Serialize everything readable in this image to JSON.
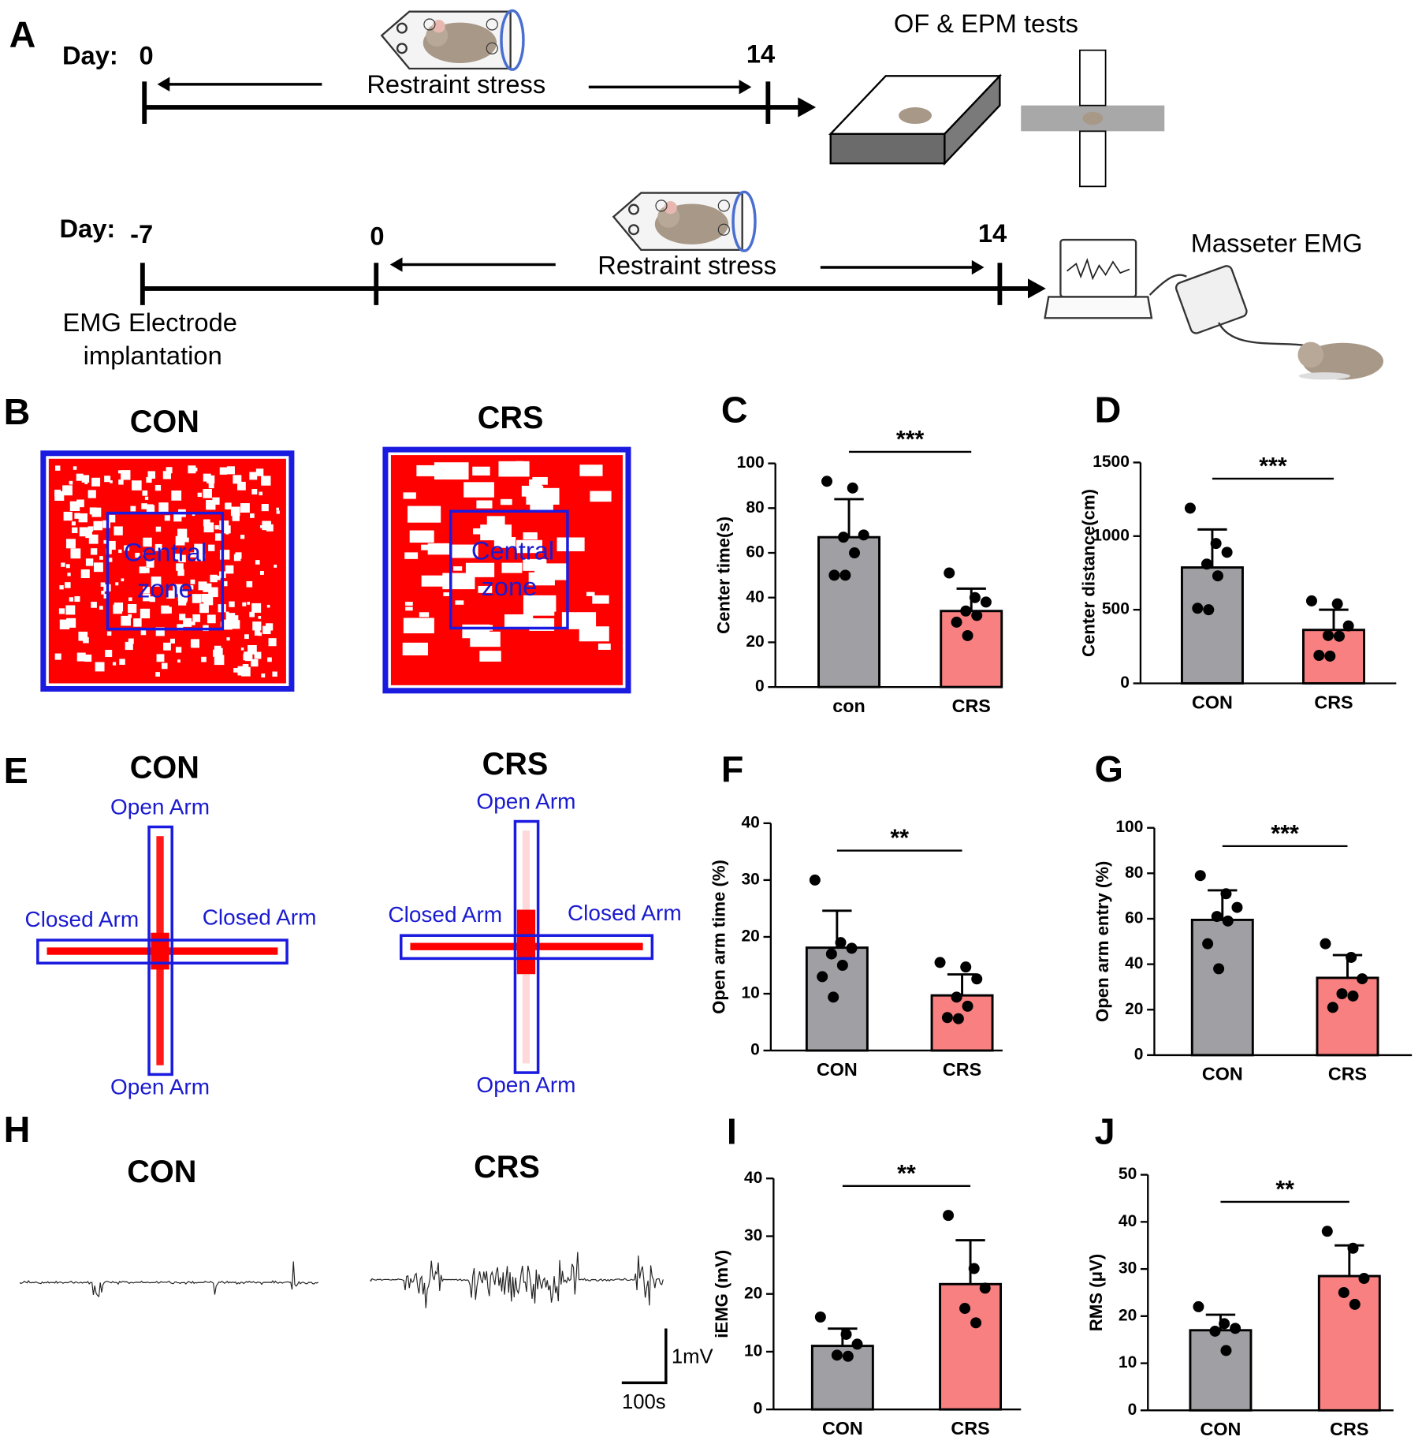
{
  "panel_labels": [
    "A",
    "B",
    "C",
    "D",
    "E",
    "F",
    "G",
    "H",
    "I",
    "J"
  ],
  "timeline": {
    "day_label": "Day:",
    "row1": {
      "days": [
        "0",
        "14"
      ],
      "stage": "Restraint stress",
      "test": "OF & EPM tests"
    },
    "row2": {
      "days": [
        "-7",
        "0",
        "14"
      ],
      "stage": "Restraint stress",
      "test": "Masseter EMG",
      "procedure": [
        "EMG Electrode",
        "implantation"
      ]
    }
  },
  "of_tracks": {
    "groups": [
      "CON",
      "CRS"
    ],
    "zone_label": [
      "Central",
      "zone"
    ]
  },
  "epm_tracks": {
    "groups": [
      "CON",
      "CRS"
    ],
    "open_arm": "Open Arm",
    "closed_arm": "Closed Arm"
  },
  "emg_traces": {
    "groups": [
      "CON",
      "CRS"
    ],
    "scale_y": "1mV",
    "scale_x": "100s"
  },
  "chart_data": [
    {
      "type": "bar",
      "y_label": "Center time(s)",
      "categories": [
        "con",
        "CRS"
      ],
      "colors": [
        "#a0a0a4",
        "#f98080"
      ],
      "values": [
        67,
        34
      ],
      "errors": [
        17,
        10
      ],
      "points": [
        [
          92,
          89,
          68,
          67,
          60,
          50,
          50
        ],
        [
          51,
          40,
          38,
          34,
          32,
          29,
          23
        ]
      ],
      "significance": "***",
      "ylim": [
        0,
        100
      ],
      "yticks": [
        0,
        20,
        40,
        60,
        80,
        100
      ]
    },
    {
      "type": "bar",
      "y_label": "Center distance(cm)",
      "categories": [
        "CON",
        "CRS"
      ],
      "colors": [
        "#a0a0a4",
        "#f98080"
      ],
      "values": [
        787,
        363
      ],
      "errors": [
        258,
        137
      ],
      "points": [
        [
          1190,
          950,
          890,
          810,
          730,
          510,
          500
        ],
        [
          560,
          540,
          390,
          325,
          320,
          190,
          185
        ]
      ],
      "significance": "***",
      "ylim": [
        0,
        1500
      ],
      "yticks": [
        0,
        500,
        1000,
        1500
      ]
    },
    {
      "type": "bar",
      "y_label": "Open arm time (%)",
      "categories": [
        "CON",
        "CRS"
      ],
      "colors": [
        "#a0a0a4",
        "#f98080"
      ],
      "values": [
        18.1,
        9.7
      ],
      "errors": [
        6.5,
        3.7
      ],
      "points": [
        [
          30,
          19,
          18,
          17,
          15,
          13,
          9.4
        ],
        [
          15.5,
          14.7,
          12.6,
          9.4,
          7.8,
          5.8,
          5.6
        ]
      ],
      "significance": "**",
      "ylim": [
        0,
        40
      ],
      "yticks": [
        0,
        10,
        20,
        30,
        40
      ]
    },
    {
      "type": "bar",
      "y_label": "Open arm entry (%)",
      "categories": [
        "CON",
        "CRS"
      ],
      "colors": [
        "#a0a0a4",
        "#f98080"
      ],
      "values": [
        59.5,
        34
      ],
      "errors": [
        13,
        10
      ],
      "points": [
        [
          79,
          71,
          65,
          61,
          59,
          49,
          38
        ],
        [
          49,
          43,
          33.6,
          27,
          26,
          21
        ]
      ],
      "significance": "***",
      "ylim": [
        0,
        100
      ],
      "yticks": [
        0,
        20,
        40,
        60,
        80,
        100
      ]
    },
    {
      "type": "bar",
      "y_label": "iEMG (mV)",
      "categories": [
        "CON",
        "CRS"
      ],
      "colors": [
        "#a0a0a4",
        "#f98080"
      ],
      "values": [
        11,
        21.7
      ],
      "errors": [
        3,
        7.6
      ],
      "points": [
        [
          16,
          13,
          11.3,
          9.4,
          9.2
        ],
        [
          33.6,
          24.4,
          21,
          17.5,
          15
        ]
      ],
      "significance": "**",
      "ylim": [
        0,
        40
      ],
      "yticks": [
        0,
        10,
        20,
        30,
        40
      ]
    },
    {
      "type": "bar",
      "y_label": "RMS (μV)",
      "categories": [
        "CON",
        "CRS"
      ],
      "colors": [
        "#a0a0a4",
        "#f98080"
      ],
      "values": [
        17,
        28.5
      ],
      "errors": [
        3.3,
        6.5
      ],
      "points": [
        [
          22,
          18.4,
          17.4,
          16.8,
          12.7
        ],
        [
          38,
          34.4,
          28,
          25,
          22.5
        ]
      ],
      "significance": "**",
      "ylim": [
        0,
        50
      ],
      "yticks": [
        0,
        10,
        20,
        30,
        40,
        50
      ]
    }
  ]
}
